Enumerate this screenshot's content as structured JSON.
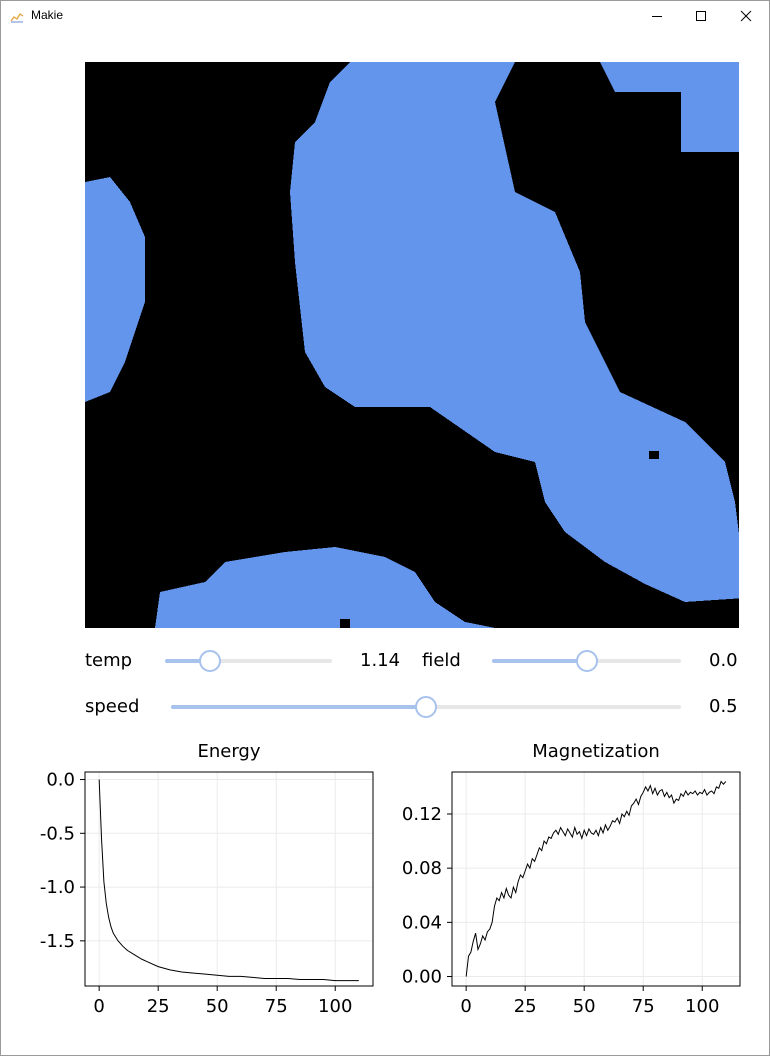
{
  "window": {
    "title": "Makie"
  },
  "lattice": {
    "colors": {
      "up": "#6495ed",
      "down": "#000000"
    },
    "cols": 65,
    "rows": 62,
    "domains": [
      [
        0,
        0,
        1,
        0,
        1,
        0,
        0
      ],
      [
        1,
        0,
        1,
        1,
        0,
        0,
        1
      ],
      [
        0,
        0,
        1,
        1,
        1,
        0,
        0
      ],
      [
        0,
        0,
        0,
        1,
        1,
        1,
        0
      ],
      [
        0,
        0,
        0,
        0,
        1,
        1,
        0
      ],
      [
        0,
        1,
        1,
        0,
        0,
        1,
        1
      ]
    ]
  },
  "controls": {
    "temp": {
      "label": "temp",
      "value": "1.14",
      "fraction": 0.27
    },
    "field": {
      "label": "field",
      "value": "0.0",
      "fraction": 0.5
    },
    "speed": {
      "label": "speed",
      "value": "0.5",
      "fraction": 0.5
    }
  },
  "chart_data": [
    {
      "type": "line",
      "title": "Energy",
      "xlabel": "",
      "ylabel": "",
      "xlim": [
        -6,
        116
      ],
      "ylim": [
        -1.92,
        0.07
      ],
      "xticks": [
        0,
        25,
        50,
        75,
        100
      ],
      "xtick_labels": [
        "0",
        "25",
        "50",
        "75",
        "100"
      ],
      "yticks": [
        0.0,
        -0.5,
        -1.0,
        -1.5
      ],
      "ytick_labels": [
        "0.0",
        "-0.5",
        "-1.0",
        "-1.5"
      ],
      "grid": true,
      "series": [
        {
          "x": [
            0,
            1,
            2,
            3,
            4,
            5,
            6,
            8,
            10,
            12,
            15,
            18,
            20,
            25,
            30,
            35,
            40,
            45,
            50,
            55,
            60,
            65,
            70,
            75,
            80,
            85,
            90,
            95,
            100,
            105,
            110
          ],
          "values": [
            0.0,
            -0.55,
            -0.95,
            -1.15,
            -1.28,
            -1.37,
            -1.43,
            -1.5,
            -1.55,
            -1.59,
            -1.63,
            -1.67,
            -1.69,
            -1.74,
            -1.77,
            -1.79,
            -1.8,
            -1.81,
            -1.82,
            -1.83,
            -1.83,
            -1.84,
            -1.85,
            -1.85,
            -1.85,
            -1.86,
            -1.86,
            -1.86,
            -1.87,
            -1.87,
            -1.87
          ]
        }
      ]
    },
    {
      "type": "line",
      "title": "Magnetization",
      "xlabel": "",
      "ylabel": "",
      "xlim": [
        -6,
        116
      ],
      "ylim": [
        -0.007,
        0.151
      ],
      "xticks": [
        0,
        25,
        50,
        75,
        100
      ],
      "xtick_labels": [
        "0",
        "25",
        "50",
        "75",
        "100"
      ],
      "yticks": [
        0.0,
        0.04,
        0.08,
        0.12
      ],
      "ytick_labels": [
        "0.00",
        "0.04",
        "0.08",
        "0.12"
      ],
      "grid": true,
      "series": [
        {
          "x": [
            0,
            1,
            2,
            3,
            4,
            5,
            6,
            7,
            8,
            9,
            10,
            11,
            12,
            13,
            14,
            15,
            16,
            17,
            18,
            19,
            20,
            21,
            22,
            23,
            24,
            25,
            26,
            27,
            28,
            29,
            30,
            31,
            32,
            33,
            34,
            35,
            36,
            37,
            38,
            39,
            40,
            41,
            42,
            43,
            44,
            45,
            46,
            47,
            48,
            49,
            50,
            51,
            52,
            53,
            54,
            55,
            56,
            57,
            58,
            59,
            60,
            61,
            62,
            63,
            64,
            65,
            66,
            67,
            68,
            69,
            70,
            71,
            72,
            73,
            74,
            75,
            76,
            77,
            78,
            79,
            80,
            81,
            82,
            83,
            84,
            85,
            86,
            87,
            88,
            89,
            90,
            91,
            92,
            93,
            94,
            95,
            96,
            97,
            98,
            99,
            100,
            101,
            102,
            103,
            104,
            105,
            106,
            107,
            108,
            109,
            110
          ],
          "values": [
            0.0,
            0.015,
            0.018,
            0.026,
            0.032,
            0.02,
            0.024,
            0.03,
            0.027,
            0.033,
            0.035,
            0.04,
            0.052,
            0.058,
            0.056,
            0.062,
            0.058,
            0.065,
            0.06,
            0.058,
            0.066,
            0.062,
            0.07,
            0.075,
            0.073,
            0.078,
            0.083,
            0.08,
            0.087,
            0.085,
            0.09,
            0.095,
            0.093,
            0.1,
            0.098,
            0.103,
            0.102,
            0.106,
            0.108,
            0.105,
            0.11,
            0.107,
            0.104,
            0.109,
            0.106,
            0.103,
            0.11,
            0.105,
            0.107,
            0.102,
            0.108,
            0.104,
            0.109,
            0.106,
            0.105,
            0.108,
            0.104,
            0.11,
            0.106,
            0.112,
            0.108,
            0.111,
            0.115,
            0.114,
            0.117,
            0.113,
            0.12,
            0.118,
            0.122,
            0.119,
            0.126,
            0.128,
            0.131,
            0.127,
            0.133,
            0.136,
            0.14,
            0.137,
            0.141,
            0.135,
            0.139,
            0.134,
            0.137,
            0.138,
            0.133,
            0.136,
            0.132,
            0.134,
            0.128,
            0.131,
            0.13,
            0.135,
            0.133,
            0.137,
            0.134,
            0.136,
            0.135,
            0.137,
            0.134,
            0.136,
            0.135,
            0.138,
            0.134,
            0.136,
            0.137,
            0.135,
            0.14,
            0.139,
            0.144,
            0.142,
            0.144
          ]
        }
      ]
    }
  ]
}
